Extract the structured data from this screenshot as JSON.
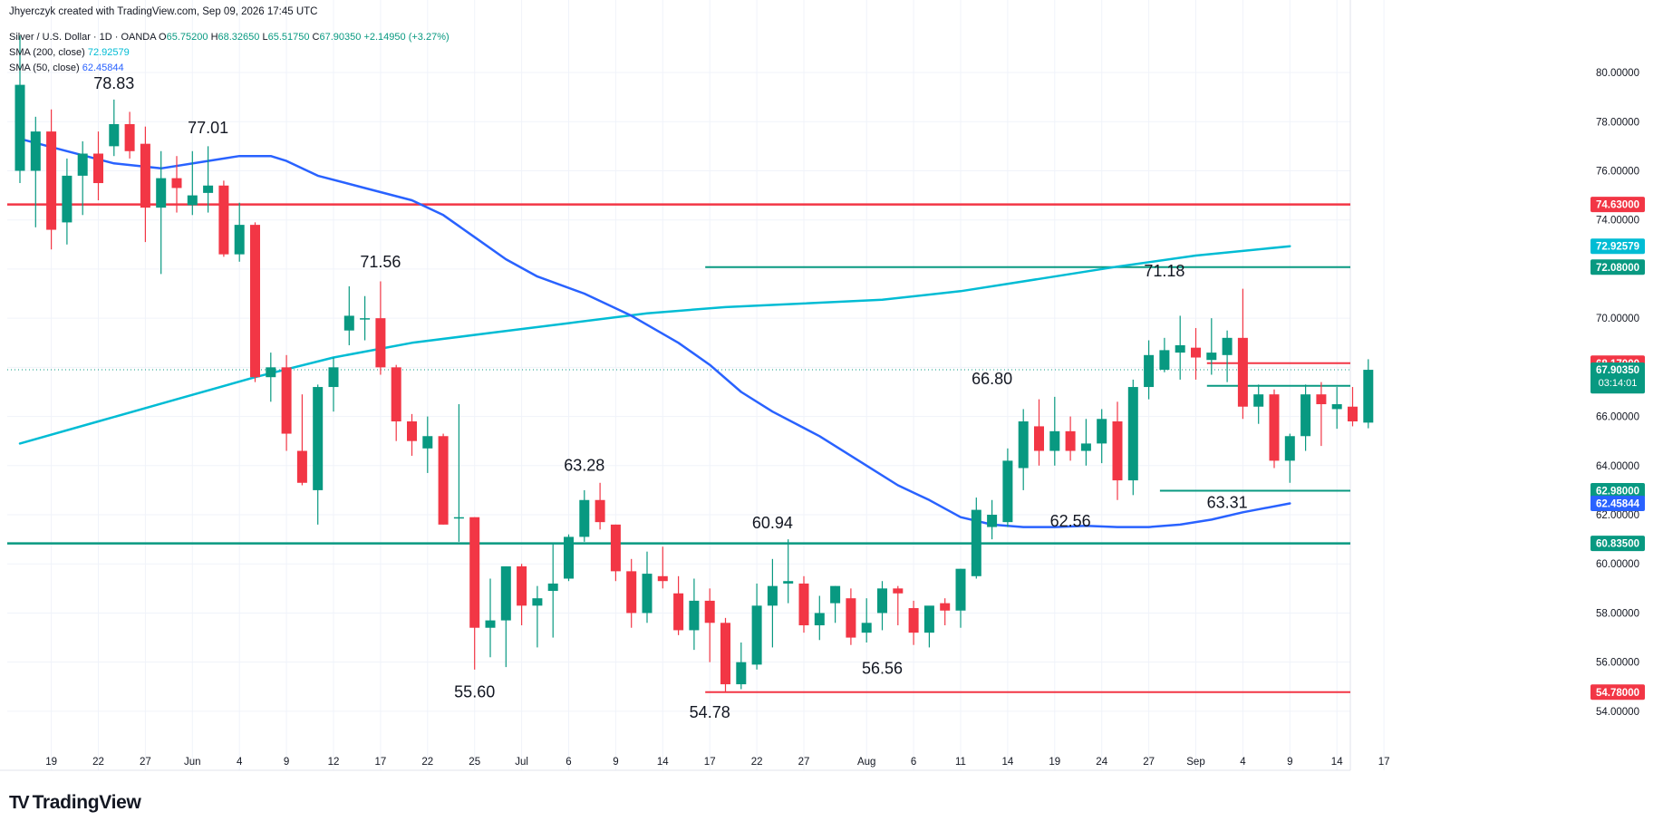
{
  "header": {
    "attribution": "Jhyerczyk created with TradingView.com, Sep 09, 2026 17:45 UTC",
    "symbol": "Silver / U.S. Dollar · 1D · OANDA",
    "ohlc": {
      "o_key": "O",
      "o": "65.75200",
      "h_key": "H",
      "h": "68.32650",
      "l_key": "L",
      "l": "65.51750",
      "c_key": "C",
      "c": "67.90350",
      "change": "+2.14950 (+3.27%)"
    },
    "sma200_label": "SMA (200, close)",
    "sma200_value": "72.92579",
    "sma50_label": "SMA (50, close)",
    "sma50_value": "62.45844"
  },
  "logo": {
    "mark": "TV",
    "text": "TradingView"
  },
  "colors": {
    "up": "#089981",
    "down": "#f23645",
    "sma200": "#00bcd4",
    "sma50": "#2962ff",
    "grid": "#f0f3fa",
    "text": "#131722",
    "axis_text": "#131722"
  },
  "chart_data": {
    "type": "candlestick",
    "ylim": [
      52.0,
      82.0
    ],
    "x_ticks": [
      {
        "i": 2,
        "label": "19"
      },
      {
        "i": 5,
        "label": "22"
      },
      {
        "i": 8,
        "label": "27"
      },
      {
        "i": 11,
        "label": "Jun"
      },
      {
        "i": 14,
        "label": "4"
      },
      {
        "i": 17,
        "label": "9"
      },
      {
        "i": 20,
        "label": "12"
      },
      {
        "i": 23,
        "label": "17"
      },
      {
        "i": 26,
        "label": "22"
      },
      {
        "i": 29,
        "label": "25"
      },
      {
        "i": 32,
        "label": "Jul"
      },
      {
        "i": 35,
        "label": "6"
      },
      {
        "i": 38,
        "label": "9"
      },
      {
        "i": 41,
        "label": "14"
      },
      {
        "i": 44,
        "label": "17"
      },
      {
        "i": 47,
        "label": "22"
      },
      {
        "i": 50,
        "label": "27"
      },
      {
        "i": 54,
        "label": "Aug"
      },
      {
        "i": 57,
        "label": "6"
      },
      {
        "i": 60,
        "label": "11"
      },
      {
        "i": 63,
        "label": "14"
      },
      {
        "i": 66,
        "label": "19"
      },
      {
        "i": 69,
        "label": "24"
      },
      {
        "i": 72,
        "label": "27"
      },
      {
        "i": 75,
        "label": "Sep"
      },
      {
        "i": 78,
        "label": "4"
      },
      {
        "i": 81,
        "label": "9"
      },
      {
        "i": 84,
        "label": "14"
      },
      {
        "i": 87,
        "label": "17"
      }
    ],
    "y_ticks": [
      "54.00000",
      "56.00000",
      "58.00000",
      "60.00000",
      "62.00000",
      "64.00000",
      "66.00000",
      "68.00000",
      "70.00000",
      "72.00000",
      "74.00000",
      "76.00000",
      "78.00000",
      "80.00000"
    ],
    "candles": [
      {
        "o": 76.0,
        "h": 81.5,
        "l": 75.5,
        "c": 79.5
      },
      {
        "o": 76.0,
        "h": 78.2,
        "l": 73.7,
        "c": 77.6
      },
      {
        "o": 77.6,
        "h": 78.5,
        "l": 72.8,
        "c": 73.6
      },
      {
        "o": 73.9,
        "h": 76.5,
        "l": 73.0,
        "c": 75.8
      },
      {
        "o": 75.8,
        "h": 77.2,
        "l": 74.2,
        "c": 76.7
      },
      {
        "o": 76.7,
        "h": 77.6,
        "l": 74.8,
        "c": 75.5
      },
      {
        "o": 77.0,
        "h": 78.9,
        "l": 76.6,
        "c": 77.9
      },
      {
        "o": 77.9,
        "h": 78.4,
        "l": 76.5,
        "c": 76.8
      },
      {
        "o": 77.1,
        "h": 77.8,
        "l": 73.1,
        "c": 74.5
      },
      {
        "o": 74.5,
        "h": 76.8,
        "l": 71.8,
        "c": 75.7
      },
      {
        "o": 75.7,
        "h": 76.6,
        "l": 74.3,
        "c": 75.3
      },
      {
        "o": 74.6,
        "h": 76.8,
        "l": 74.2,
        "c": 75.0
      },
      {
        "o": 75.1,
        "h": 77.0,
        "l": 74.3,
        "c": 75.4
      },
      {
        "o": 75.4,
        "h": 75.6,
        "l": 72.5,
        "c": 72.6
      },
      {
        "o": 72.6,
        "h": 74.7,
        "l": 72.3,
        "c": 73.8
      },
      {
        "o": 73.8,
        "h": 73.9,
        "l": 67.4,
        "c": 67.6
      },
      {
        "o": 67.6,
        "h": 68.6,
        "l": 66.6,
        "c": 68.0
      },
      {
        "o": 68.0,
        "h": 68.5,
        "l": 64.6,
        "c": 65.3
      },
      {
        "o": 64.6,
        "h": 66.9,
        "l": 63.2,
        "c": 63.3
      },
      {
        "o": 63.0,
        "h": 67.3,
        "l": 61.6,
        "c": 67.2
      },
      {
        "o": 67.2,
        "h": 68.4,
        "l": 66.2,
        "c": 68.0
      },
      {
        "o": 69.5,
        "h": 71.3,
        "l": 68.9,
        "c": 70.1
      },
      {
        "o": 70.0,
        "h": 70.9,
        "l": 69.1,
        "c": 70.0
      },
      {
        "o": 70.0,
        "h": 71.5,
        "l": 67.7,
        "c": 68.0
      },
      {
        "o": 68.0,
        "h": 68.1,
        "l": 65.0,
        "c": 65.8
      },
      {
        "o": 65.8,
        "h": 66.1,
        "l": 64.4,
        "c": 65.0
      },
      {
        "o": 64.7,
        "h": 66.0,
        "l": 63.7,
        "c": 65.2
      },
      {
        "o": 65.2,
        "h": 65.3,
        "l": 61.6,
        "c": 61.6
      },
      {
        "o": 61.9,
        "h": 66.5,
        "l": 60.9,
        "c": 61.9
      },
      {
        "o": 61.9,
        "h": 61.9,
        "l": 55.7,
        "c": 57.4
      },
      {
        "o": 57.4,
        "h": 59.4,
        "l": 56.2,
        "c": 57.7
      },
      {
        "o": 57.7,
        "h": 59.9,
        "l": 55.8,
        "c": 59.9
      },
      {
        "o": 59.9,
        "h": 60.0,
        "l": 57.5,
        "c": 58.3
      },
      {
        "o": 58.3,
        "h": 59.1,
        "l": 56.6,
        "c": 58.6
      },
      {
        "o": 58.9,
        "h": 60.8,
        "l": 57.0,
        "c": 59.2
      },
      {
        "o": 59.4,
        "h": 61.2,
        "l": 59.3,
        "c": 61.1
      },
      {
        "o": 61.1,
        "h": 63.0,
        "l": 60.9,
        "c": 62.6
      },
      {
        "o": 62.6,
        "h": 63.3,
        "l": 61.4,
        "c": 61.7
      },
      {
        "o": 61.6,
        "h": 61.6,
        "l": 59.3,
        "c": 59.7
      },
      {
        "o": 59.7,
        "h": 60.2,
        "l": 57.4,
        "c": 58.0
      },
      {
        "o": 58.0,
        "h": 60.5,
        "l": 57.6,
        "c": 59.6
      },
      {
        "o": 59.5,
        "h": 60.7,
        "l": 59.0,
        "c": 59.3
      },
      {
        "o": 58.8,
        "h": 59.5,
        "l": 57.1,
        "c": 57.3
      },
      {
        "o": 57.3,
        "h": 59.4,
        "l": 56.5,
        "c": 58.5
      },
      {
        "o": 58.5,
        "h": 59.0,
        "l": 56.0,
        "c": 57.6
      },
      {
        "o": 57.6,
        "h": 57.8,
        "l": 54.8,
        "c": 55.1
      },
      {
        "o": 55.1,
        "h": 56.8,
        "l": 54.9,
        "c": 56.0
      },
      {
        "o": 55.9,
        "h": 59.2,
        "l": 55.7,
        "c": 58.3
      },
      {
        "o": 58.3,
        "h": 60.2,
        "l": 56.6,
        "c": 59.1
      },
      {
        "o": 59.2,
        "h": 61.0,
        "l": 58.4,
        "c": 59.3
      },
      {
        "o": 59.2,
        "h": 59.5,
        "l": 57.2,
        "c": 57.5
      },
      {
        "o": 57.5,
        "h": 58.7,
        "l": 56.9,
        "c": 58.0
      },
      {
        "o": 58.4,
        "h": 59.1,
        "l": 57.6,
        "c": 59.1
      },
      {
        "o": 58.6,
        "h": 59.0,
        "l": 56.7,
        "c": 57.0
      },
      {
        "o": 57.2,
        "h": 58.6,
        "l": 56.8,
        "c": 57.6
      },
      {
        "o": 58.0,
        "h": 59.3,
        "l": 57.3,
        "c": 59.0
      },
      {
        "o": 59.0,
        "h": 59.1,
        "l": 57.5,
        "c": 58.8
      },
      {
        "o": 58.2,
        "h": 58.5,
        "l": 56.7,
        "c": 57.2
      },
      {
        "o": 57.2,
        "h": 58.0,
        "l": 56.6,
        "c": 58.3
      },
      {
        "o": 58.4,
        "h": 58.6,
        "l": 57.5,
        "c": 58.1
      },
      {
        "o": 58.1,
        "h": 59.8,
        "l": 57.4,
        "c": 59.8
      },
      {
        "o": 59.5,
        "h": 62.7,
        "l": 59.4,
        "c": 62.2
      },
      {
        "o": 61.5,
        "h": 62.6,
        "l": 61.0,
        "c": 62.0
      },
      {
        "o": 61.7,
        "h": 64.7,
        "l": 61.5,
        "c": 64.2
      },
      {
        "o": 63.9,
        "h": 66.3,
        "l": 63.0,
        "c": 65.8
      },
      {
        "o": 65.6,
        "h": 66.7,
        "l": 64.0,
        "c": 64.6
      },
      {
        "o": 64.6,
        "h": 66.8,
        "l": 64.0,
        "c": 65.4
      },
      {
        "o": 65.4,
        "h": 66.0,
        "l": 64.2,
        "c": 64.6
      },
      {
        "o": 64.6,
        "h": 65.9,
        "l": 64.0,
        "c": 64.9
      },
      {
        "o": 64.9,
        "h": 66.3,
        "l": 64.1,
        "c": 65.9
      },
      {
        "o": 65.8,
        "h": 66.6,
        "l": 62.6,
        "c": 63.4
      },
      {
        "o": 63.4,
        "h": 67.5,
        "l": 62.8,
        "c": 67.2
      },
      {
        "o": 67.2,
        "h": 69.1,
        "l": 66.7,
        "c": 68.5
      },
      {
        "o": 67.9,
        "h": 69.2,
        "l": 67.8,
        "c": 68.7
      },
      {
        "o": 68.6,
        "h": 70.1,
        "l": 67.5,
        "c": 68.9
      },
      {
        "o": 68.8,
        "h": 69.6,
        "l": 67.5,
        "c": 68.4
      },
      {
        "o": 68.3,
        "h": 70.0,
        "l": 67.7,
        "c": 68.6
      },
      {
        "o": 68.5,
        "h": 69.5,
        "l": 67.4,
        "c": 69.2
      },
      {
        "o": 69.2,
        "h": 71.2,
        "l": 65.9,
        "c": 66.4
      },
      {
        "o": 66.4,
        "h": 67.3,
        "l": 65.7,
        "c": 66.9
      },
      {
        "o": 66.9,
        "h": 67.1,
        "l": 63.9,
        "c": 64.2
      },
      {
        "o": 64.2,
        "h": 65.3,
        "l": 63.3,
        "c": 65.2
      },
      {
        "o": 65.2,
        "h": 67.3,
        "l": 64.6,
        "c": 66.9
      },
      {
        "o": 66.9,
        "h": 67.4,
        "l": 64.8,
        "c": 66.5
      },
      {
        "o": 66.3,
        "h": 67.2,
        "l": 65.5,
        "c": 66.5
      },
      {
        "o": 66.4,
        "h": 67.2,
        "l": 65.6,
        "c": 65.8
      },
      {
        "o": 65.75,
        "h": 68.33,
        "l": 65.52,
        "c": 67.9
      }
    ],
    "sma50": [
      {
        "i": 0,
        "v": 77.3
      },
      {
        "i": 3,
        "v": 76.8
      },
      {
        "i": 6,
        "v": 76.3
      },
      {
        "i": 9,
        "v": 76.1
      },
      {
        "i": 12,
        "v": 76.4
      },
      {
        "i": 14,
        "v": 76.6
      },
      {
        "i": 16,
        "v": 76.6
      },
      {
        "i": 17,
        "v": 76.4
      },
      {
        "i": 19,
        "v": 75.8
      },
      {
        "i": 22,
        "v": 75.3
      },
      {
        "i": 25,
        "v": 74.8
      },
      {
        "i": 27,
        "v": 74.2
      },
      {
        "i": 29,
        "v": 73.3
      },
      {
        "i": 31,
        "v": 72.4
      },
      {
        "i": 33,
        "v": 71.7
      },
      {
        "i": 36,
        "v": 71.0
      },
      {
        "i": 39,
        "v": 70.1
      },
      {
        "i": 42,
        "v": 69.0
      },
      {
        "i": 44,
        "v": 68.1
      },
      {
        "i": 46,
        "v": 67.0
      },
      {
        "i": 48,
        "v": 66.2
      },
      {
        "i": 51,
        "v": 65.2
      },
      {
        "i": 54,
        "v": 64.0
      },
      {
        "i": 56,
        "v": 63.2
      },
      {
        "i": 58,
        "v": 62.6
      },
      {
        "i": 60,
        "v": 61.9
      },
      {
        "i": 62,
        "v": 61.6
      },
      {
        "i": 64,
        "v": 61.5
      },
      {
        "i": 66,
        "v": 61.5
      },
      {
        "i": 68,
        "v": 61.55
      },
      {
        "i": 70,
        "v": 61.5
      },
      {
        "i": 72,
        "v": 61.5
      },
      {
        "i": 74,
        "v": 61.6
      },
      {
        "i": 76,
        "v": 61.8
      },
      {
        "i": 78,
        "v": 62.1
      },
      {
        "i": 81,
        "v": 62.46
      }
    ],
    "sma200": [
      {
        "i": 0,
        "v": 64.9
      },
      {
        "i": 5,
        "v": 65.8
      },
      {
        "i": 10,
        "v": 66.7
      },
      {
        "i": 15,
        "v": 67.6
      },
      {
        "i": 20,
        "v": 68.4
      },
      {
        "i": 25,
        "v": 69.0
      },
      {
        "i": 30,
        "v": 69.4
      },
      {
        "i": 35,
        "v": 69.8
      },
      {
        "i": 40,
        "v": 70.2
      },
      {
        "i": 45,
        "v": 70.45
      },
      {
        "i": 50,
        "v": 70.6
      },
      {
        "i": 55,
        "v": 70.75
      },
      {
        "i": 60,
        "v": 71.1
      },
      {
        "i": 65,
        "v": 71.6
      },
      {
        "i": 70,
        "v": 72.1
      },
      {
        "i": 75,
        "v": 72.55
      },
      {
        "i": 81,
        "v": 72.93
      }
    ],
    "hlines": [
      {
        "y": 74.63,
        "x_from": -1,
        "x_to": 92,
        "color": "#f23645",
        "width": 2.5,
        "tag": "74.63000"
      },
      {
        "y": 72.08,
        "x_from": 44,
        "x_to": 92,
        "color": "#089981",
        "width": 2,
        "tag": "72.08000"
      },
      {
        "y": 68.17,
        "x_from": 76,
        "x_to": 92,
        "color": "#f23645",
        "width": 2,
        "tag": "68.17000"
      },
      {
        "y": 67.25,
        "x_from": 76,
        "x_to": 92,
        "color": "#089981",
        "width": 2,
        "tag": "67.25000"
      },
      {
        "y": 62.98,
        "x_from": 73,
        "x_to": 92,
        "color": "#089981",
        "width": 2,
        "tag": "62.98000"
      },
      {
        "y": 60.835,
        "x_from": -1,
        "x_to": 92,
        "color": "#089981",
        "width": 2.5,
        "tag": "60.83500"
      },
      {
        "y": 54.78,
        "x_from": 44,
        "x_to": 92,
        "color": "#f23645",
        "width": 2,
        "tag": "54.78000"
      }
    ],
    "price_tags": [
      {
        "y": 72.93,
        "text": "72.92579",
        "color": "#00bcd4"
      },
      {
        "y": 62.46,
        "text": "62.45844",
        "color": "#2962ff"
      }
    ],
    "current_price": {
      "y": 67.9035,
      "text": "67.90350",
      "timer": "03:14:01",
      "color": "#089981"
    },
    "annotations": [
      {
        "i": 6,
        "y": 78.83,
        "text": "78.83",
        "pos": "above"
      },
      {
        "i": 12,
        "y": 77.01,
        "text": "77.01",
        "pos": "above"
      },
      {
        "i": 23,
        "y": 71.56,
        "text": "71.56",
        "pos": "above"
      },
      {
        "i": 29,
        "y": 55.6,
        "text": "55.60",
        "pos": "below"
      },
      {
        "i": 36,
        "y": 63.28,
        "text": "63.28",
        "pos": "above"
      },
      {
        "i": 44,
        "y": 54.78,
        "text": "54.78",
        "pos": "below"
      },
      {
        "i": 48,
        "y": 60.94,
        "text": "60.94",
        "pos": "above"
      },
      {
        "i": 55,
        "y": 56.56,
        "text": "56.56",
        "pos": "below"
      },
      {
        "i": 62,
        "y": 66.8,
        "text": "66.80",
        "pos": "above"
      },
      {
        "i": 67,
        "y": 62.56,
        "text": "62.56",
        "pos": "below"
      },
      {
        "i": 73,
        "y": 71.18,
        "text": "71.18",
        "pos": "above"
      },
      {
        "i": 77,
        "y": 63.31,
        "text": "63.31",
        "pos": "below"
      }
    ]
  }
}
